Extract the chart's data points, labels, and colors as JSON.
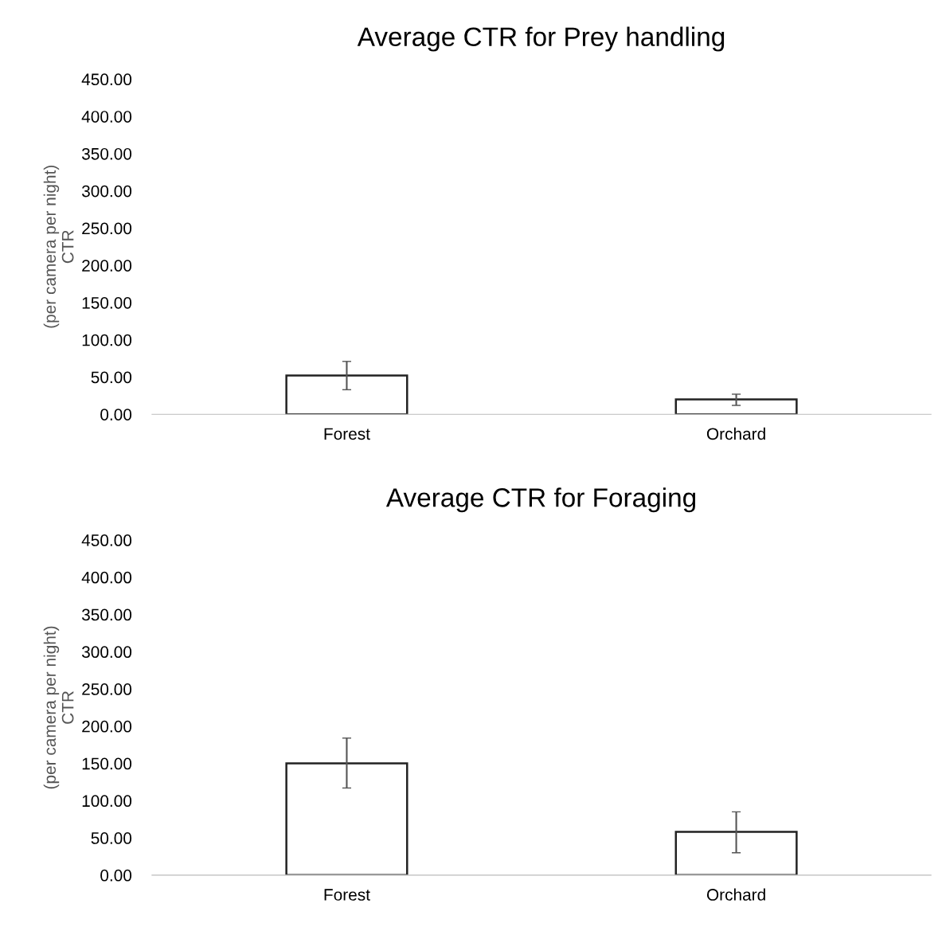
{
  "chart_data": [
    {
      "type": "bar",
      "title": "Average CTR for Prey handling",
      "ylabel": "(per camera per night)\nCTR",
      "categories": [
        "Forest",
        "Orchard"
      ],
      "values": [
        52,
        20
      ],
      "errors": [
        [
          33,
          71
        ],
        [
          12,
          27
        ]
      ],
      "color": "#ffffff",
      "ylim": [
        0,
        450
      ],
      "yticks": [
        {
          "value": 0,
          "label": "0.00"
        },
        {
          "value": 50,
          "label": "50.00"
        },
        {
          "value": 100,
          "label": "100.00"
        },
        {
          "value": 150,
          "label": "150.00"
        },
        {
          "value": 200,
          "label": "200.00"
        },
        {
          "value": 250,
          "label": "250.00"
        },
        {
          "value": 300,
          "label": "300.00"
        },
        {
          "value": 350,
          "label": "350.00"
        },
        {
          "value": 400,
          "label": "400.00"
        },
        {
          "value": 450,
          "label": "450.00"
        }
      ],
      "grid": false,
      "legend": false
    },
    {
      "type": "bar",
      "title": "Average CTR for Foraging",
      "ylabel": "(per camera per night)\nCTR",
      "categories": [
        "Forest",
        "Orchard"
      ],
      "values": [
        150,
        58
      ],
      "errors": [
        [
          117,
          184
        ],
        [
          30,
          85
        ]
      ],
      "color": "#ffffff",
      "ylim": [
        0,
        450
      ],
      "yticks": [
        {
          "value": 0,
          "label": "0.00"
        },
        {
          "value": 50,
          "label": "50.00"
        },
        {
          "value": 100,
          "label": "100.00"
        },
        {
          "value": 150,
          "label": "150.00"
        },
        {
          "value": 200,
          "label": "200.00"
        },
        {
          "value": 250,
          "label": "250.00"
        },
        {
          "value": 300,
          "label": "300.00"
        },
        {
          "value": 350,
          "label": "350.00"
        },
        {
          "value": 400,
          "label": "400.00"
        },
        {
          "value": 450,
          "label": "450.00"
        }
      ],
      "grid": false,
      "legend": false
    }
  ]
}
